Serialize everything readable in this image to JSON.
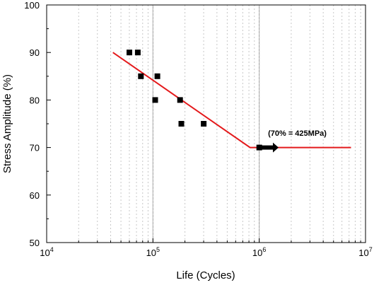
{
  "chart_data": {
    "type": "scatter",
    "xlabel": "Life (Cycles)",
    "ylabel": "Stress Amplitude (%)",
    "xscale": "log",
    "xlim": [
      10000,
      10000000
    ],
    "ylim": [
      50,
      100
    ],
    "xticks": [
      {
        "value": 10000,
        "base": "10",
        "exp": "4"
      },
      {
        "value": 100000,
        "base": "10",
        "exp": "5"
      },
      {
        "value": 1000000,
        "base": "10",
        "exp": "6"
      },
      {
        "value": 10000000,
        "base": "10",
        "exp": "7"
      }
    ],
    "yticks": [
      50,
      60,
      70,
      80,
      90,
      100
    ],
    "grid": "vertical minor dotted, major solid at decades",
    "points": [
      {
        "x": 60000,
        "y": 90
      },
      {
        "x": 72000,
        "y": 90
      },
      {
        "x": 77000,
        "y": 85
      },
      {
        "x": 110000,
        "y": 85
      },
      {
        "x": 105000,
        "y": 80
      },
      {
        "x": 180000,
        "y": 80
      },
      {
        "x": 185000,
        "y": 75
      },
      {
        "x": 300000,
        "y": 75
      },
      {
        "x": 1000000,
        "y": 70
      }
    ],
    "fit_line": [
      {
        "x": 42000,
        "y": 90
      },
      {
        "x": 820000,
        "y": 70
      },
      {
        "x": 7300000,
        "y": 70
      }
    ],
    "fit_color": "#e41a1c",
    "marker_color": "#000000",
    "runout_arrow": {
      "x_start": 1000000,
      "x_end": 1520000,
      "y": 70
    },
    "annotation": {
      "text": "(70% = 425MPa)",
      "x": 800000,
      "y": 72.5
    }
  }
}
